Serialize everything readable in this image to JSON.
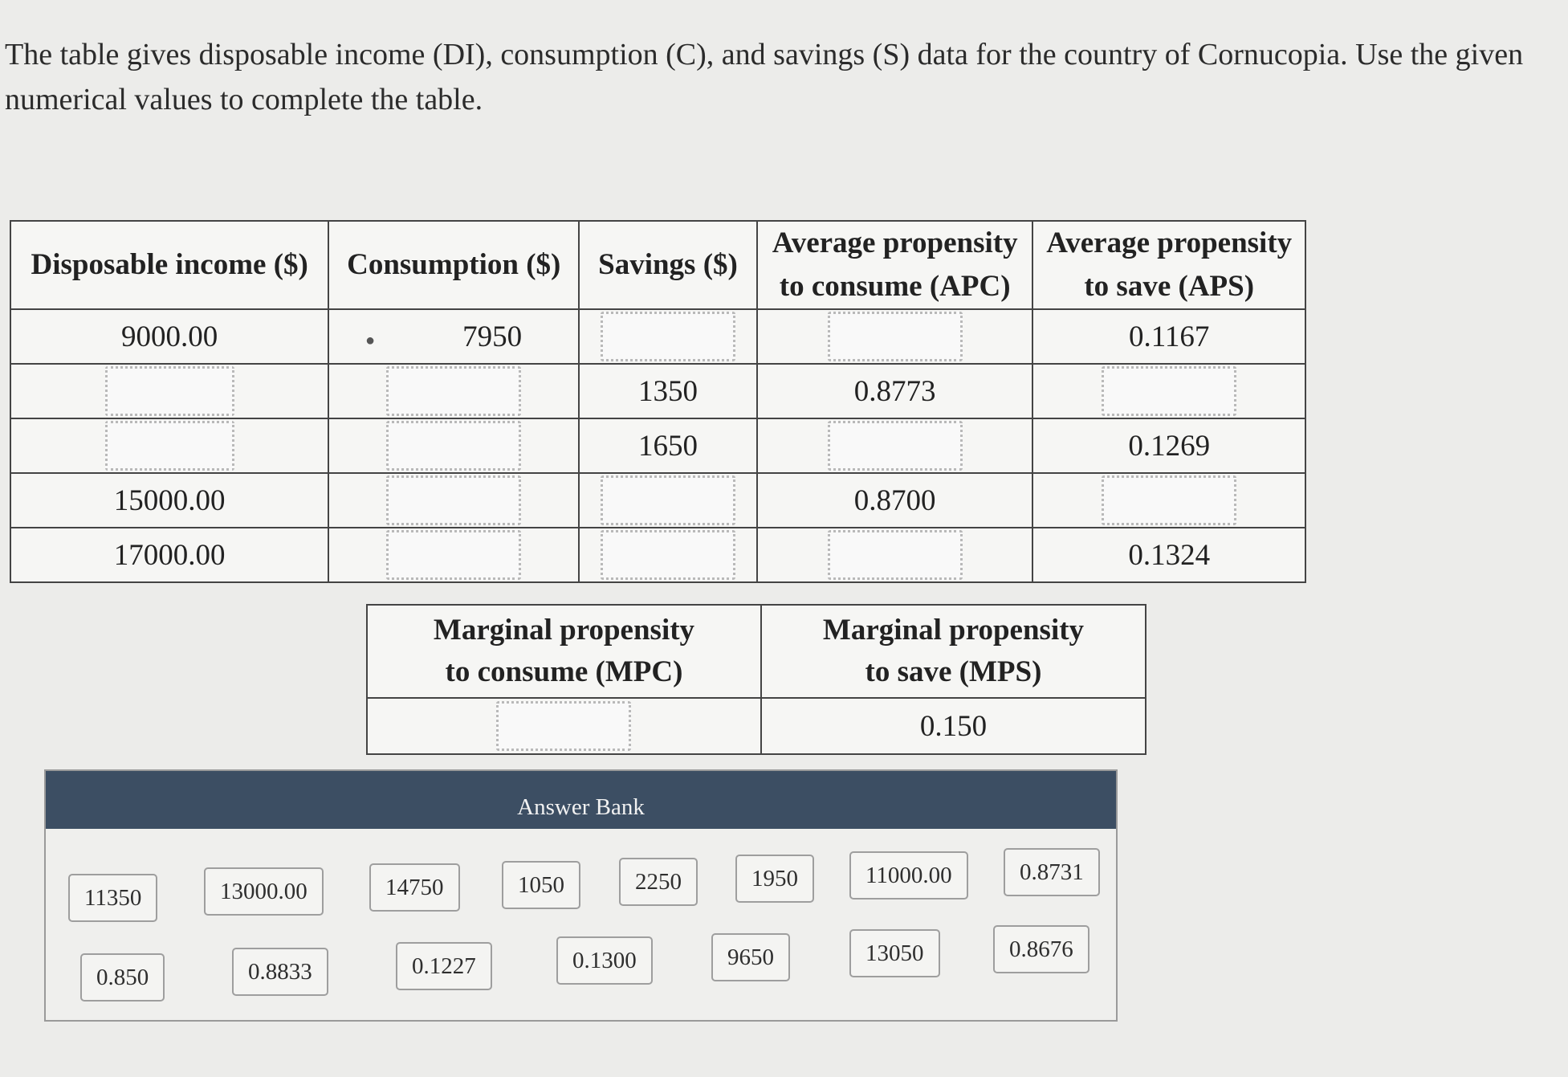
{
  "prompt": "The table gives disposable income (DI), consumption (C), and savings (S) data for the country of Cornucopia. Use the given numerical values to complete the table.",
  "table": {
    "headers": {
      "di": "Disposable income ($)",
      "c": "Consumption ($)",
      "s": "Savings ($)",
      "apc_l1": "Average propensity",
      "apc_l2": "to consume (APC)",
      "aps_l1": "Average propensity",
      "aps_l2": "to save (APS)"
    },
    "rows": [
      {
        "di": "9000.00",
        "c": "7950",
        "s": "",
        "apc": "",
        "aps": "0.1167"
      },
      {
        "di": "",
        "c": "",
        "s": "1350",
        "apc": "0.8773",
        "aps": ""
      },
      {
        "di": "",
        "c": "",
        "s": "1650",
        "apc": "",
        "aps": "0.1269"
      },
      {
        "di": "15000.00",
        "c": "",
        "s": "",
        "apc": "0.8700",
        "aps": ""
      },
      {
        "di": "17000.00",
        "c": "",
        "s": "",
        "apc": "",
        "aps": "0.1324"
      }
    ]
  },
  "marginal": {
    "mpc_l1": "Marginal propensity",
    "mpc_l2": "to consume (MPC)",
    "mps_l1": "Marginal propensity",
    "mps_l2": "to save (MPS)",
    "mpc": "",
    "mps": "0.150"
  },
  "answer_bank": {
    "title": "Answer Bank",
    "row1": [
      "11350",
      "13000.00",
      "14750",
      "1050",
      "2250",
      "1950",
      "11000.00",
      "0.8731"
    ],
    "row2": [
      "0.850",
      "0.8833",
      "0.1227",
      "0.1300",
      "9650",
      "13050",
      "0.8676"
    ]
  }
}
